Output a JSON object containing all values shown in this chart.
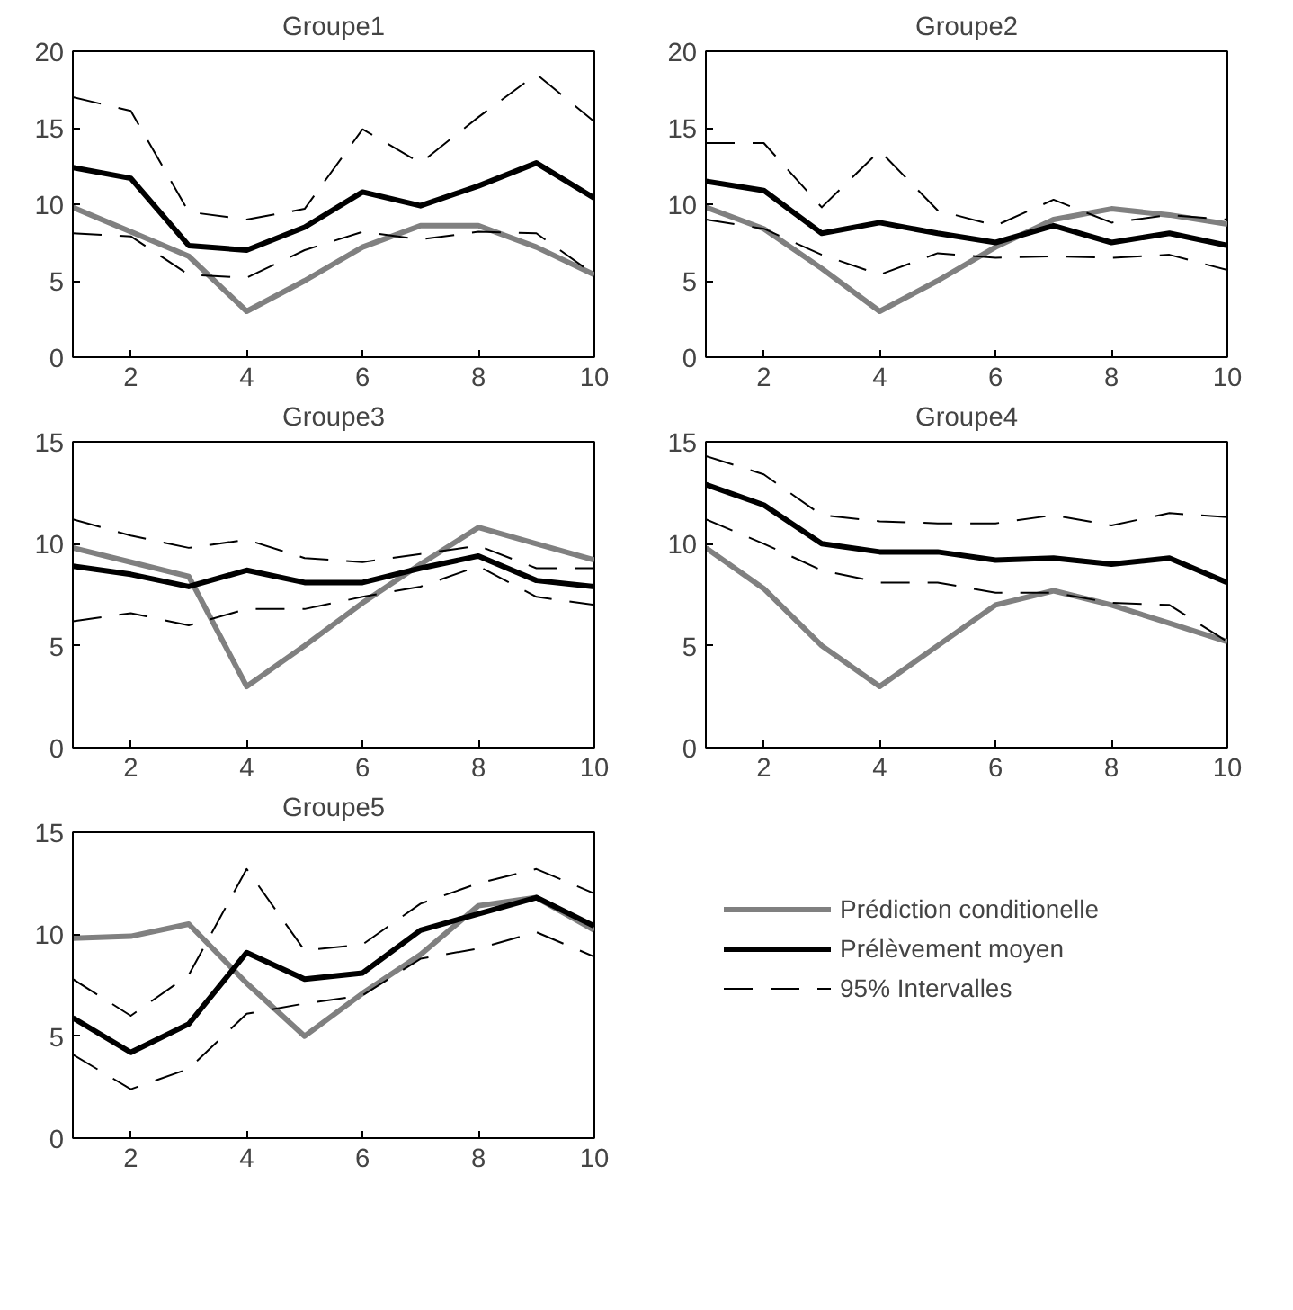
{
  "chart_data": [
    {
      "type": "line",
      "title": "Groupe1",
      "x": [
        1,
        2,
        3,
        4,
        5,
        6,
        7,
        8,
        9,
        10
      ],
      "xlim": [
        1,
        10
      ],
      "xticks": [
        2,
        4,
        6,
        8,
        10
      ],
      "ylim": [
        0,
        20
      ],
      "yticks": [
        0,
        5,
        10,
        15,
        20
      ],
      "series": [
        {
          "color": "#808080",
          "line_style": "solid",
          "values": [
            9.8,
            8.2,
            6.6,
            3.0,
            5.0,
            7.2,
            8.6,
            8.6,
            7.2,
            5.4
          ]
        },
        {
          "color": "#000000",
          "line_style": "solid",
          "values": [
            12.4,
            11.7,
            7.3,
            7.0,
            8.5,
            10.8,
            9.9,
            11.2,
            12.7,
            10.4
          ]
        },
        {
          "color": "#000000",
          "line_style": "dashed",
          "values": [
            17.0,
            16.1,
            9.5,
            9.0,
            9.7,
            14.9,
            12.7,
            15.7,
            18.5,
            15.4
          ]
        },
        {
          "color": "#000000",
          "line_style": "dashed",
          "values": [
            8.1,
            7.9,
            5.4,
            5.2,
            7.0,
            8.2,
            7.7,
            8.2,
            8.1,
            5.4
          ]
        }
      ]
    },
    {
      "type": "line",
      "title": "Groupe2",
      "x": [
        1,
        2,
        3,
        4,
        5,
        6,
        7,
        8,
        9,
        10
      ],
      "xlim": [
        1,
        10
      ],
      "xticks": [
        2,
        4,
        6,
        8,
        10
      ],
      "ylim": [
        0,
        20
      ],
      "yticks": [
        0,
        5,
        10,
        15,
        20
      ],
      "series": [
        {
          "color": "#808080",
          "line_style": "solid",
          "values": [
            9.8,
            8.4,
            5.8,
            3.0,
            5.0,
            7.2,
            9.0,
            9.7,
            9.3,
            8.7
          ]
        },
        {
          "color": "#000000",
          "line_style": "solid",
          "values": [
            11.5,
            10.9,
            8.1,
            8.8,
            8.1,
            7.5,
            8.6,
            7.5,
            8.1,
            7.3
          ]
        },
        {
          "color": "#000000",
          "line_style": "dashed",
          "values": [
            14.0,
            14.0,
            9.8,
            13.5,
            9.6,
            8.6,
            10.3,
            8.8,
            9.3,
            9.0
          ]
        },
        {
          "color": "#000000",
          "line_style": "dashed",
          "values": [
            9.0,
            8.4,
            6.7,
            5.4,
            6.8,
            6.5,
            6.6,
            6.5,
            6.7,
            5.7
          ]
        }
      ]
    },
    {
      "type": "line",
      "title": "Groupe3",
      "x": [
        1,
        2,
        3,
        4,
        5,
        6,
        7,
        8,
        9,
        10
      ],
      "xlim": [
        1,
        10
      ],
      "xticks": [
        2,
        4,
        6,
        8,
        10
      ],
      "ylim": [
        0,
        15
      ],
      "yticks": [
        0,
        5,
        10,
        15
      ],
      "series": [
        {
          "color": "#808080",
          "line_style": "solid",
          "values": [
            9.8,
            9.1,
            8.4,
            3.0,
            5.0,
            7.1,
            9.0,
            10.8,
            10.0,
            9.2
          ]
        },
        {
          "color": "#000000",
          "line_style": "solid",
          "values": [
            8.9,
            8.5,
            7.9,
            8.7,
            8.1,
            8.1,
            8.8,
            9.4,
            8.2,
            7.9
          ]
        },
        {
          "color": "#000000",
          "line_style": "dashed",
          "values": [
            11.2,
            10.4,
            9.8,
            10.2,
            9.3,
            9.1,
            9.5,
            9.9,
            8.8,
            8.8
          ]
        },
        {
          "color": "#000000",
          "line_style": "dashed",
          "values": [
            6.2,
            6.6,
            6.0,
            6.8,
            6.8,
            7.4,
            7.9,
            8.9,
            7.4,
            7.0
          ]
        }
      ]
    },
    {
      "type": "line",
      "title": "Groupe4",
      "x": [
        1,
        2,
        3,
        4,
        5,
        6,
        7,
        8,
        9,
        10
      ],
      "xlim": [
        1,
        10
      ],
      "xticks": [
        2,
        4,
        6,
        8,
        10
      ],
      "ylim": [
        0,
        15
      ],
      "yticks": [
        0,
        5,
        10,
        15
      ],
      "series": [
        {
          "color": "#808080",
          "line_style": "solid",
          "values": [
            9.8,
            7.8,
            5.0,
            3.0,
            5.0,
            7.0,
            7.7,
            7.0,
            6.1,
            5.2
          ]
        },
        {
          "color": "#000000",
          "line_style": "solid",
          "values": [
            12.9,
            11.9,
            10.0,
            9.6,
            9.6,
            9.2,
            9.3,
            9.0,
            9.3,
            8.1
          ]
        },
        {
          "color": "#000000",
          "line_style": "dashed",
          "values": [
            14.3,
            13.4,
            11.4,
            11.1,
            11.0,
            11.0,
            11.4,
            10.9,
            11.5,
            11.3
          ]
        },
        {
          "color": "#000000",
          "line_style": "dashed",
          "values": [
            11.2,
            10.0,
            8.7,
            8.1,
            8.1,
            7.6,
            7.6,
            7.1,
            7.0,
            5.2
          ]
        }
      ]
    },
    {
      "type": "line",
      "title": "Groupe5",
      "x": [
        1,
        2,
        3,
        4,
        5,
        6,
        7,
        8,
        9,
        10
      ],
      "xlim": [
        1,
        10
      ],
      "xticks": [
        2,
        4,
        6,
        8,
        10
      ],
      "ylim": [
        0,
        15
      ],
      "yticks": [
        0,
        5,
        10,
        15
      ],
      "legend": "right",
      "series": [
        {
          "name": "Prédiction conditionelle",
          "color": "#808080",
          "line_style": "solid",
          "values": [
            9.8,
            9.9,
            10.5,
            7.6,
            5.0,
            7.1,
            9.0,
            11.4,
            11.8,
            10.2
          ]
        },
        {
          "name": "Prélèvement moyen",
          "color": "#000000",
          "line_style": "solid",
          "values": [
            5.9,
            4.2,
            5.6,
            9.1,
            7.8,
            8.1,
            10.2,
            11.0,
            11.8,
            10.4
          ]
        },
        {
          "name": "95% Intervalles",
          "color": "#000000",
          "line_style": "dashed",
          "values": [
            7.8,
            6.0,
            8.0,
            13.2,
            9.2,
            9.5,
            11.5,
            12.5,
            13.2,
            12.0
          ]
        },
        {
          "color": "#000000",
          "line_style": "dashed",
          "values": [
            4.1,
            2.4,
            3.4,
            6.1,
            6.6,
            7.0,
            8.8,
            9.3,
            10.1,
            8.9
          ]
        }
      ]
    }
  ]
}
